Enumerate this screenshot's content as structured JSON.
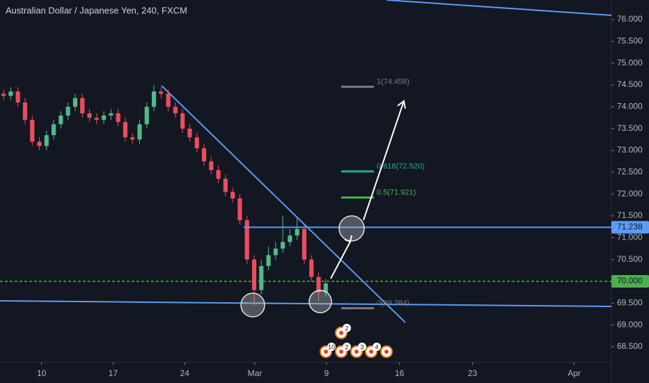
{
  "chart_data": {
    "type": "candlestick",
    "title": "Australian Dollar / Japanese Yen, 240, FXCM",
    "x": [
      0.25,
      0.75,
      1.25,
      1.75,
      2.25,
      2.75,
      3.25,
      3.75,
      4.25,
      4.75,
      5.25,
      5.75,
      6.25,
      6.75,
      7.25,
      7.75,
      8.25,
      8.75,
      9.25,
      9.75,
      10.25,
      10.75,
      11.25,
      11.75,
      12.25,
      12.75,
      13.25,
      13.75,
      14.25,
      14.75,
      15.25,
      15.75,
      16.25,
      16.75,
      17.25,
      17.75,
      18.25,
      18.75,
      19.25,
      19.75,
      20.25,
      20.75,
      21.25,
      21.75,
      22.25,
      22.75
    ],
    "open": [
      74.3,
      74.25,
      74.35,
      74.1,
      73.7,
      73.2,
      73.1,
      73.35,
      73.6,
      73.8,
      74.0,
      74.2,
      73.85,
      73.75,
      73.7,
      73.8,
      73.85,
      73.65,
      73.3,
      73.25,
      73.6,
      74.0,
      74.35,
      74.3,
      74.0,
      73.85,
      73.5,
      73.3,
      73.05,
      72.75,
      72.55,
      72.35,
      72.05,
      71.9,
      71.4,
      70.5,
      69.8,
      70.35,
      70.6,
      70.75,
      70.9,
      71.05,
      71.2,
      70.5,
      70.1,
      69.75
    ],
    "high": [
      74.4,
      74.45,
      74.45,
      74.2,
      73.8,
      73.3,
      73.45,
      73.7,
      73.9,
      74.1,
      74.3,
      74.3,
      73.95,
      73.85,
      73.9,
      73.95,
      73.95,
      73.75,
      73.4,
      73.7,
      74.1,
      74.5,
      74.45,
      74.4,
      74.1,
      73.95,
      73.6,
      73.4,
      73.15,
      72.85,
      72.65,
      72.45,
      72.15,
      72.0,
      71.5,
      70.6,
      70.5,
      70.8,
      70.9,
      71.5,
      71.2,
      71.45,
      71.3,
      70.6,
      70.2,
      70.05
    ],
    "low": [
      74.15,
      74.15,
      74.0,
      73.6,
      73.1,
      73.0,
      73.0,
      73.25,
      73.5,
      73.7,
      73.9,
      73.75,
      73.65,
      73.6,
      73.6,
      73.7,
      73.55,
      73.2,
      73.15,
      73.15,
      73.5,
      73.9,
      74.2,
      73.9,
      73.75,
      73.4,
      73.2,
      72.95,
      72.65,
      72.45,
      72.25,
      71.95,
      71.8,
      71.3,
      70.4,
      69.45,
      69.7,
      70.25,
      70.5,
      70.65,
      70.8,
      70.95,
      70.4,
      70.0,
      69.55,
      69.65
    ],
    "close": [
      74.25,
      74.35,
      74.1,
      73.7,
      73.2,
      73.1,
      73.35,
      73.6,
      73.8,
      74.0,
      74.2,
      73.85,
      73.75,
      73.7,
      73.8,
      73.85,
      73.65,
      73.3,
      73.25,
      73.6,
      74.0,
      74.35,
      74.3,
      74.0,
      73.85,
      73.5,
      73.3,
      73.05,
      72.75,
      72.55,
      72.35,
      72.05,
      71.9,
      71.4,
      70.5,
      69.8,
      70.35,
      70.6,
      70.75,
      70.9,
      71.05,
      71.2,
      70.5,
      70.1,
      69.75,
      69.95
    ],
    "up_color": "#53b987",
    "down_color": "#eb4d5c",
    "xlim": [
      0,
      42.7
    ],
    "xticks": [
      {
        "value": 2.9,
        "label": "10"
      },
      {
        "value": 7.9,
        "label": "17"
      },
      {
        "value": 12.9,
        "label": "24"
      },
      {
        "value": 17.8,
        "label": "Mar"
      },
      {
        "value": 22.8,
        "label": "9"
      },
      {
        "value": 27.9,
        "label": "16"
      },
      {
        "value": 33.0,
        "label": "23"
      },
      {
        "value": 40.1,
        "label": "Apr"
      }
    ],
    "ylim": [
      68.149,
      76.447
    ],
    "yticks": [
      {
        "value": 68.5,
        "label": "68.500"
      },
      {
        "value": 69,
        "label": "69.000"
      },
      {
        "value": 69.5,
        "label": "69.500"
      },
      {
        "value": 70,
        "label": "70.000"
      },
      {
        "value": 70.5,
        "label": "70.500"
      },
      {
        "value": 71,
        "label": "71.000"
      },
      {
        "value": 71.5,
        "label": "71.500"
      },
      {
        "value": 72,
        "label": "72.000"
      },
      {
        "value": 72.5,
        "label": "72.500"
      },
      {
        "value": 73,
        "label": "73.000"
      },
      {
        "value": 73.5,
        "label": "73.500"
      },
      {
        "value": 74,
        "label": "74.000"
      },
      {
        "value": 74.5,
        "label": "74.500"
      },
      {
        "value": 75,
        "label": "75.000"
      },
      {
        "value": 75.5,
        "label": "75.500"
      },
      {
        "value": 76,
        "label": "76.000"
      }
    ],
    "fib_levels": [
      {
        "value": 74.458,
        "label": "1(74.458)",
        "color": "#787b86"
      },
      {
        "value": 72.52,
        "label": "0.618(72.520)",
        "color": "#26a69a"
      },
      {
        "value": 71.921,
        "label": "0.5(71.921)",
        "color": "#4caf50"
      },
      {
        "value": 69.384,
        "label": "0(69.384)",
        "color": "#787b86"
      }
    ],
    "price_lines": [
      {
        "value": 71.238,
        "label": "71.238",
        "color": "#5b9cf6",
        "dashed": false
      },
      {
        "value": 70.0,
        "label": "70.000",
        "color": "#4caf50",
        "dashed": true
      }
    ],
    "events": [
      "2",
      "10",
      "2",
      "3",
      "4"
    ]
  }
}
